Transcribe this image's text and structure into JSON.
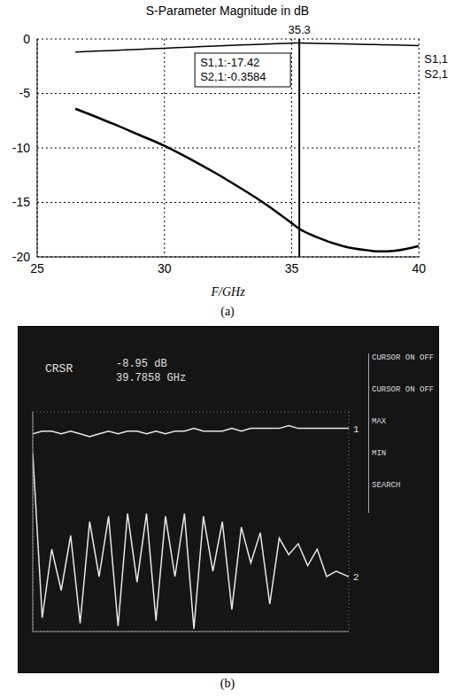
{
  "chart_data": [
    {
      "type": "line",
      "title": "S-Parameter Magnitude in dB",
      "x_label": "F/GHz",
      "panel_label": "(a)",
      "x": [
        26.5,
        28,
        29,
        30,
        31,
        32,
        33,
        34,
        35,
        35.3,
        36,
        37,
        38,
        38.5,
        39,
        40
      ],
      "series": [
        {
          "name": "S1,1",
          "color": "#000000",
          "values": [
            -6.4,
            -7.8,
            -8.8,
            -9.8,
            -11.0,
            -12.3,
            -13.7,
            -15.2,
            -16.9,
            -17.42,
            -18.2,
            -19.0,
            -19.4,
            -19.5,
            -19.45,
            -19.0
          ]
        },
        {
          "name": "S2,1",
          "color": "#000000",
          "values": [
            -1.2,
            -1.05,
            -0.95,
            -0.85,
            -0.75,
            -0.65,
            -0.55,
            -0.47,
            -0.38,
            -0.3584,
            -0.4,
            -0.45,
            -0.5,
            -0.52,
            -0.55,
            -0.6
          ]
        }
      ],
      "xlim": [
        25,
        40
      ],
      "xticks": [
        25,
        30,
        35,
        40
      ],
      "ylim": [
        -20,
        0
      ],
      "yticks": [
        0,
        -5,
        -10,
        -15,
        -20
      ],
      "grid": true,
      "legend": "right",
      "annotations": {
        "marker": {
          "x": 35.3,
          "label": "35.3"
        },
        "box": [
          "S1,1:-17.42",
          "S2,1:-0.3584"
        ]
      }
    },
    {
      "type": "line",
      "panel_label": "(b)",
      "tick_labels": false,
      "grid": true,
      "x": [
        0,
        0.3,
        0.6,
        0.9,
        1.2,
        1.5,
        1.8,
        2.1,
        2.4,
        2.7,
        3.0,
        3.3,
        3.6,
        3.9,
        4.2,
        4.5,
        4.8,
        5.1,
        5.4,
        5.7,
        6.0,
        6.3,
        6.6,
        6.9,
        7.2,
        7.5,
        7.8,
        8.1,
        8.4,
        8.7,
        9.0,
        9.3,
        9.6,
        10
      ],
      "series": [
        {
          "name": "1",
          "color": "#e8e8e8",
          "values": [
            7.2,
            7.3,
            7.3,
            7.2,
            7.3,
            7.2,
            7.1,
            7.2,
            7.3,
            7.2,
            7.3,
            7.3,
            7.2,
            7.3,
            7.2,
            7.3,
            7.3,
            7.4,
            7.3,
            7.3,
            7.3,
            7.4,
            7.3,
            7.4,
            7.4,
            7.4,
            7.4,
            7.5,
            7.4,
            7.4,
            7.4,
            7.4,
            7.4,
            7.4
          ]
        },
        {
          "name": "2",
          "color": "#e8e8e8",
          "values": [
            6.5,
            0.5,
            3.0,
            1.5,
            3.5,
            0.3,
            4.0,
            2.0,
            4.2,
            0.2,
            4.3,
            1.8,
            4.3,
            0.4,
            4.2,
            2.0,
            4.3,
            0.1,
            4.2,
            2.2,
            4.0,
            0.8,
            3.8,
            2.5,
            3.6,
            1.0,
            3.4,
            2.8,
            3.2,
            2.4,
            3.0,
            2.0,
            2.2,
            2.0
          ]
        }
      ],
      "xlim": [
        0,
        10
      ],
      "xticks": [
        0,
        1,
        2,
        3,
        4,
        5,
        6,
        7,
        8,
        9,
        10
      ],
      "ylim": [
        0,
        8
      ],
      "yticks": [
        0,
        1,
        2,
        3,
        4,
        5,
        6,
        7,
        8
      ],
      "annotations": {
        "cursor": [
          "CRSR",
          "-8.95 dB",
          "39.7858 GHz"
        ],
        "menu": [
          "CURSOR ON OFF",
          "CURSOR ON OFF",
          "MAX",
          "MIN",
          "SEARCH"
        ]
      }
    }
  ]
}
